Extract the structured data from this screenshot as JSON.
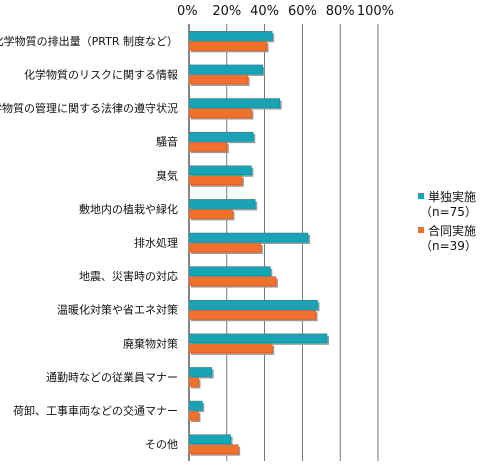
{
  "chart_data": {
    "type": "bar",
    "orientation": "horizontal",
    "categories": [
      "化学物質の排出量（PRTR 制度など）",
      "化学物質のリスクに関する情報",
      "化学物質の管理に関する法律の遵守状況",
      "騒音",
      "臭気",
      "敷地内の植栽や緑化",
      "排水処理",
      "地震、災害時の対応",
      "温暖化対策や省エネ対策",
      "廃棄物対策",
      "通勤時などの従業員マナー",
      "荷卸、工事車両などの交通マナー",
      "その他"
    ],
    "series": [
      {
        "name": "単独実施",
        "sample": "（n=75）",
        "color": "#1aa3b5",
        "values": [
          44,
          39,
          48,
          34,
          33,
          35,
          63,
          43,
          68,
          73,
          12,
          7,
          22
        ]
      },
      {
        "name": "合同実施",
        "sample": "（n=39）",
        "color": "#f07030",
        "values": [
          41,
          31,
          33,
          20,
          28,
          23,
          38,
          46,
          67,
          44,
          5,
          5,
          26
        ]
      }
    ],
    "x_ticks": [
      "0%",
      "20%",
      "40%",
      "60%",
      "80%",
      "100%"
    ],
    "xlim": [
      0,
      100
    ],
    "grid": true,
    "legend_position": "right"
  }
}
